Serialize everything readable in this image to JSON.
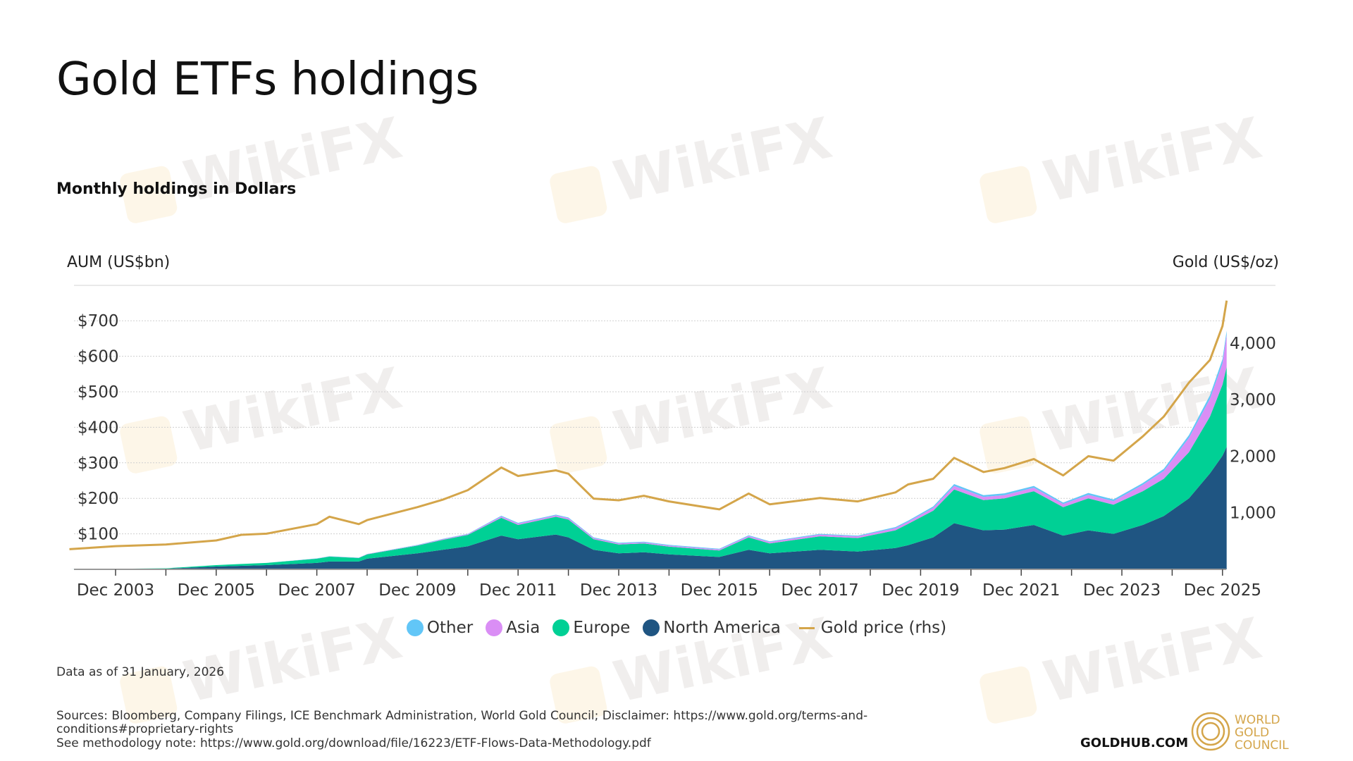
{
  "title": "Gold ETFs holdings",
  "subtitle": "Monthly holdings in Dollars",
  "watermark": "WikiFX",
  "footer": {
    "as_of": "Data as of 31 January, 2026",
    "sources": "Sources: Bloomberg, Company Filings, ICE Benchmark Administration, World Gold Council; Disclaimer: https://www.gold.org/terms-and-conditions#proprietary-rights",
    "methodology": "See methodology note: https://www.gold.org/download/file/16223/ETF-Flows-Data-Methodology.pdf",
    "goldhub": "GOLDHUB.COM",
    "logo_text": [
      "WORLD",
      "GOLD",
      "COUNCIL"
    ]
  },
  "colors": {
    "Other": "#62c6f7",
    "Asia": "#da8ef5",
    "Europe": "#00d095",
    "North America": "#1f5582",
    "Gold price (rhs)": "#d4a54a"
  },
  "chart_data": {
    "type": "area",
    "stacked": true,
    "ylabel": "AUM (US$bn)",
    "y2label": "Gold (US$/oz)",
    "ylim": [
      0,
      800
    ],
    "y2lim": [
      0,
      4800
    ],
    "yticks": [
      "$100",
      "$200",
      "$300",
      "$400",
      "$500",
      "$600",
      "$700"
    ],
    "y2ticks": [
      "1,000",
      "2,000",
      "3,000",
      "4,000"
    ],
    "xticks": [
      "Dec 2003",
      "Dec 2005",
      "Dec 2007",
      "Dec 2009",
      "Dec 2011",
      "Dec 2013",
      "Dec 2015",
      "Dec 2017",
      "Dec 2019",
      "Dec 2021",
      "Dec 2023",
      "Dec 2025"
    ],
    "grid": true,
    "legend": "bottom",
    "x": [
      "2003-01",
      "2003-12",
      "2004-12",
      "2005-12",
      "2006-06",
      "2006-12",
      "2007-12",
      "2008-03",
      "2008-10",
      "2008-12",
      "2009-12",
      "2010-06",
      "2010-12",
      "2011-08",
      "2011-12",
      "2012-09",
      "2012-12",
      "2013-06",
      "2013-12",
      "2014-06",
      "2014-12",
      "2015-12",
      "2016-07",
      "2016-12",
      "2017-12",
      "2018-09",
      "2019-06",
      "2019-09",
      "2020-03",
      "2020-08",
      "2021-03",
      "2021-08",
      "2022-03",
      "2022-10",
      "2023-04",
      "2023-10",
      "2024-05",
      "2024-10",
      "2025-04",
      "2025-09",
      "2025-12",
      "2026-01"
    ],
    "series": [
      {
        "name": "North America",
        "type": "area",
        "values": [
          0,
          1,
          2,
          8,
          10,
          12,
          18,
          22,
          22,
          30,
          45,
          55,
          65,
          95,
          85,
          98,
          90,
          55,
          45,
          48,
          42,
          35,
          55,
          45,
          55,
          50,
          60,
          68,
          90,
          130,
          110,
          112,
          125,
          95,
          110,
          100,
          125,
          150,
          200,
          270,
          320,
          345
        ]
      },
      {
        "name": "Europe",
        "type": "area",
        "values": [
          0,
          0.5,
          1,
          4,
          5,
          6,
          12,
          14,
          10,
          12,
          22,
          28,
          32,
          50,
          40,
          50,
          50,
          30,
          25,
          25,
          22,
          18,
          35,
          28,
          38,
          38,
          50,
          60,
          75,
          95,
          85,
          88,
          95,
          80,
          90,
          82,
          95,
          105,
          130,
          160,
          200,
          225
        ]
      },
      {
        "name": "Asia",
        "type": "area",
        "values": [
          0,
          0,
          0,
          0,
          0,
          0,
          0.5,
          0.5,
          0.5,
          1,
          1,
          2,
          2,
          4,
          4,
          4,
          4,
          3,
          3,
          3,
          3,
          3,
          4,
          4,
          5,
          5,
          6,
          6,
          8,
          10,
          9,
          9,
          10,
          9,
          10,
          10,
          18,
          22,
          40,
          50,
          60,
          90
        ]
      },
      {
        "name": "Other",
        "type": "area",
        "values": [
          0,
          0,
          0,
          0,
          0,
          0,
          0.5,
          0.5,
          0.5,
          0.5,
          1,
          1,
          1,
          2,
          2,
          2,
          2,
          2,
          2,
          2,
          2,
          2,
          2,
          2,
          2,
          2,
          3,
          3,
          4,
          5,
          5,
          5,
          5,
          4,
          5,
          5,
          5,
          6,
          8,
          10,
          12,
          12
        ]
      },
      {
        "name": "Gold price (rhs)",
        "type": "line",
        "axis": "right",
        "values": [
          356,
          410,
          440,
          510,
          610,
          630,
          800,
          930,
          800,
          870,
          1100,
          1230,
          1400,
          1800,
          1650,
          1750,
          1690,
          1250,
          1220,
          1300,
          1200,
          1060,
          1340,
          1150,
          1260,
          1200,
          1360,
          1500,
          1600,
          1970,
          1720,
          1790,
          1950,
          1660,
          2000,
          1920,
          2350,
          2700,
          3300,
          3700,
          4300,
          4750
        ]
      }
    ]
  }
}
